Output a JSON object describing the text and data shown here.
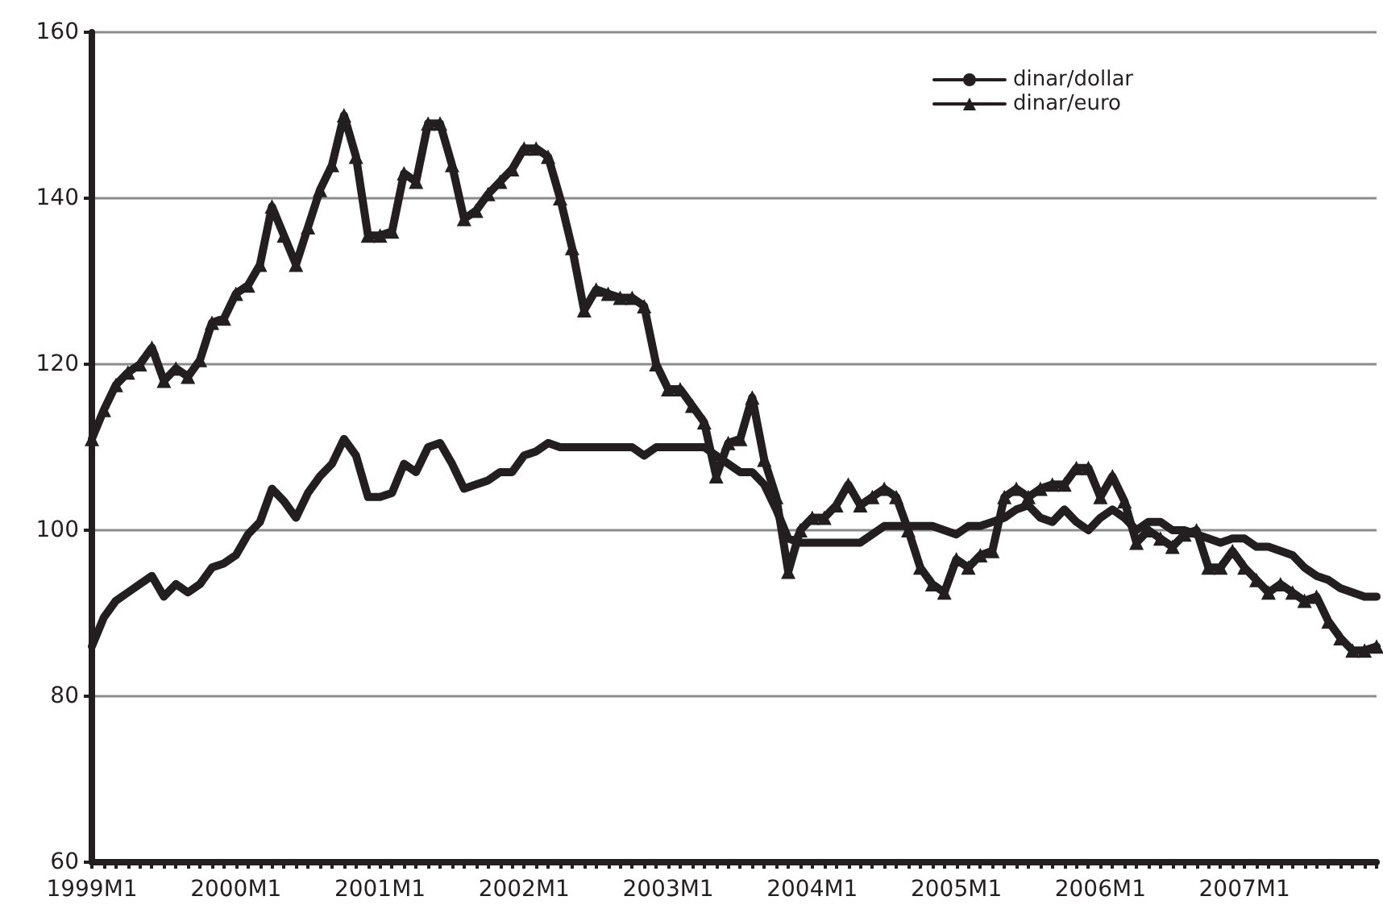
{
  "chart_data": {
    "type": "line",
    "categories": [
      "1999M1",
      null,
      null,
      null,
      null,
      null,
      null,
      null,
      null,
      null,
      null,
      null,
      "2000M1",
      null,
      null,
      null,
      null,
      null,
      null,
      null,
      null,
      null,
      null,
      null,
      "2001M1",
      null,
      null,
      null,
      null,
      null,
      null,
      null,
      null,
      null,
      null,
      null,
      "2002M1",
      null,
      null,
      null,
      null,
      null,
      null,
      null,
      null,
      null,
      null,
      null,
      "2003M1",
      null,
      null,
      null,
      null,
      null,
      null,
      null,
      null,
      null,
      null,
      null,
      "2004M1",
      null,
      null,
      null,
      null,
      null,
      null,
      null,
      null,
      null,
      null,
      null,
      "2005M1",
      null,
      null,
      null,
      null,
      null,
      null,
      null,
      null,
      null,
      null,
      null,
      "2006M1",
      null,
      null,
      null,
      null,
      null,
      null,
      null,
      null,
      null,
      null,
      null,
      "2007M1",
      null,
      null,
      null,
      null,
      null,
      null,
      null,
      null,
      null,
      null,
      null
    ],
    "series": [
      {
        "name": "dinar/dollar",
        "color": "#231f20",
        "marker": "none",
        "values": [
          86,
          89.5,
          91.5,
          92.5,
          93.5,
          94.5,
          92,
          93.5,
          92.5,
          93.5,
          95.5,
          96,
          97,
          99.5,
          101,
          105,
          103.5,
          101.5,
          104.5,
          106.5,
          108,
          111,
          109,
          104,
          104,
          104.5,
          108,
          107,
          110,
          110.5,
          108,
          105,
          105.5,
          106,
          107,
          107,
          109,
          109.5,
          110.5,
          110,
          110,
          110,
          110,
          110,
          110,
          110,
          109,
          110,
          110,
          110,
          110,
          110,
          109,
          108,
          107,
          107,
          105.5,
          102.5,
          99,
          98.5,
          98.5,
          98.5,
          98.5,
          98.5,
          98.5,
          99.5,
          100.5,
          100.5,
          100.5,
          100.5,
          100.5,
          100,
          99.5,
          100.5,
          100.5,
          101,
          101.5,
          102.5,
          103,
          101.5,
          101,
          102.5,
          101,
          100,
          101.5,
          102.5,
          101.5,
          100,
          101,
          101,
          100,
          100,
          99.5,
          99,
          98.5,
          99,
          99,
          98,
          98,
          97.5,
          97,
          95.5,
          94.5,
          94,
          93,
          92.5,
          92,
          92
        ]
      },
      {
        "name": "dinar/euro",
        "color": "#231f20",
        "marker": "triangle",
        "values": [
          111,
          114.5,
          117.5,
          119,
          120,
          122,
          118,
          119.5,
          118.5,
          120.5,
          125,
          125.5,
          128.5,
          129.5,
          132,
          139,
          135.5,
          132,
          136.5,
          141,
          144,
          150,
          145,
          135.5,
          135.5,
          136,
          143,
          142,
          149,
          149,
          144,
          137.5,
          138.5,
          140.5,
          142,
          143.5,
          146,
          146,
          145,
          140,
          134,
          126.5,
          129,
          128.5,
          128,
          128,
          127,
          120,
          117,
          117,
          115,
          113,
          106.5,
          110.5,
          111,
          116,
          108.5,
          104,
          95,
          100,
          101.5,
          101.5,
          103,
          105.5,
          103,
          104,
          105,
          104,
          100,
          95.5,
          93.5,
          92.5,
          96.5,
          95.5,
          97,
          97.5,
          104,
          105,
          104,
          105,
          105.5,
          105.5,
          107.5,
          107.5,
          104,
          106.5,
          103.5,
          98.5,
          100,
          99,
          98,
          99.5,
          100,
          95.5,
          95.5,
          97.5,
          95.5,
          94,
          92.5,
          93.5,
          92.5,
          91.5,
          92,
          89,
          87,
          85.5,
          85.5,
          86
        ]
      }
    ],
    "ylim": [
      60,
      160
    ],
    "yticks": [
      60,
      80,
      100,
      120,
      140,
      160
    ],
    "grid": "y",
    "legend": "top right",
    "line_style": "solid"
  }
}
